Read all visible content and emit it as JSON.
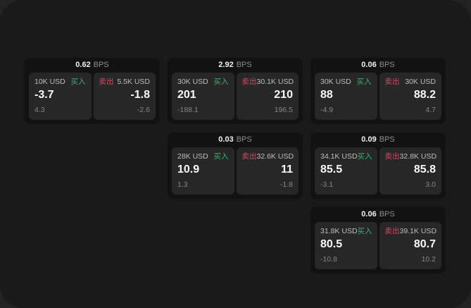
{
  "labels": {
    "buy": "买入",
    "sell": "卖出",
    "bps_unit": "BPS"
  },
  "colors": {
    "background": "#232323",
    "surface": "#1a1a1a",
    "card": "#121212",
    "panel": "#272727",
    "buy_green": "#3fae71",
    "sell_red": "#d24b61",
    "value_text": "#fafafa",
    "muted_text": "#878787"
  },
  "cards": [
    {
      "bps": "0.62",
      "buy": {
        "amount": "10K USD",
        "value": "-3.7",
        "change": "4.3"
      },
      "sell": {
        "amount": "5.5K USD",
        "value": "-1.8",
        "change": "-2.6"
      }
    },
    {
      "bps": "2.92",
      "buy": {
        "amount": "30K USD",
        "value": "201",
        "change": "-188.1"
      },
      "sell": {
        "amount": "30.1K USD",
        "value": "210",
        "change": "196.5"
      }
    },
    {
      "bps": "0.06",
      "buy": {
        "amount": "30K USD",
        "value": "88",
        "change": "-4.9"
      },
      "sell": {
        "amount": "30K USD",
        "value": "88.2",
        "change": "4.7"
      }
    },
    {
      "bps": "0.03",
      "buy": {
        "amount": "28K USD",
        "value": "10.9",
        "change": "1.3"
      },
      "sell": {
        "amount": "32.6K USD",
        "value": "11",
        "change": "-1.8"
      }
    },
    {
      "bps": "0.09",
      "buy": {
        "amount": "34.1K USD",
        "value": "85.5",
        "change": "-3.1"
      },
      "sell": {
        "amount": "32.8K USD",
        "value": "85.8",
        "change": "3.0"
      }
    },
    {
      "bps": "0.06",
      "buy": {
        "amount": "31.8K USD",
        "value": "80.5",
        "change": "-10.8"
      },
      "sell": {
        "amount": "39.1K USD",
        "value": "80.7",
        "change": "10.2"
      }
    }
  ]
}
